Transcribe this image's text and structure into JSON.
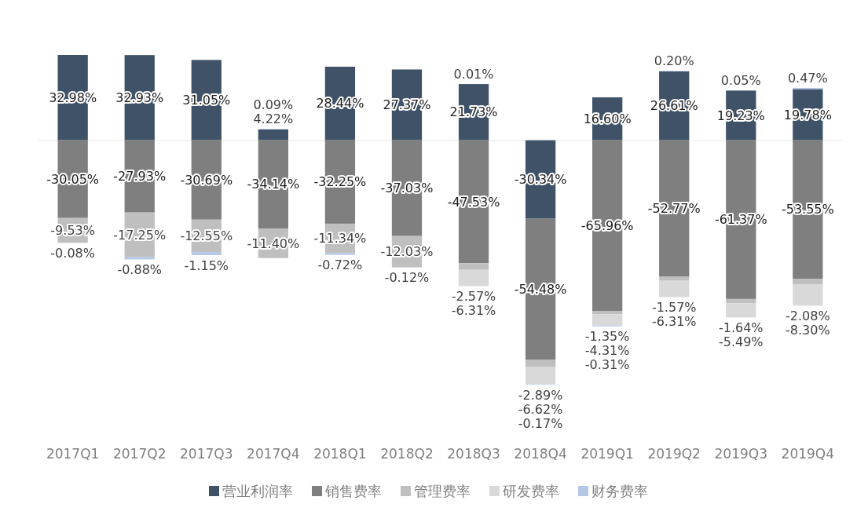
{
  "chart_data": {
    "type": "bar",
    "stacked": true,
    "categories": [
      "2017Q1",
      "2017Q2",
      "2017Q3",
      "2017Q4",
      "2018Q1",
      "2018Q2",
      "2018Q3",
      "2018Q4",
      "2019Q1",
      "2019Q2",
      "2019Q3",
      "2019Q4"
    ],
    "series": [
      {
        "name": "营业利润率",
        "color": "#3f5268",
        "values": [
          32.98,
          32.93,
          31.05,
          4.22,
          28.44,
          27.37,
          21.73,
          -30.34,
          16.6,
          26.61,
          19.23,
          19.78
        ],
        "value_labels": [
          "32.98%",
          "32.93%",
          "31.05%",
          "4.22%",
          "28.44%",
          "27.37%",
          "21.73%",
          "-30.34%",
          "16.60%",
          "26.61%",
          "19.23%",
          "19.78%"
        ]
      },
      {
        "name": "销售费率",
        "color": "#7f7f7f",
        "values": [
          -30.05,
          -27.93,
          -30.69,
          -34.14,
          -32.25,
          -37.03,
          -47.53,
          -54.48,
          -65.96,
          -52.77,
          -61.37,
          -53.55
        ],
        "value_labels": [
          "-30.05%",
          "-27.93%",
          "-30.69%",
          "-34.14%",
          "-32.25%",
          "-37.03%",
          "-47.53%",
          "-54.48%",
          "-65.96%",
          "-52.77%",
          "-61.37%",
          "-53.55%"
        ]
      },
      {
        "name": "管理费率",
        "color": "#bfbfbf",
        "values": [
          -9.53,
          -17.25,
          -12.55,
          -11.4,
          -11.34,
          -12.03,
          -2.57,
          -2.89,
          -1.35,
          -1.57,
          -1.64,
          -2.08
        ],
        "value_labels": [
          "-9.53%",
          "-17.25%",
          "-12.55%",
          "-11.40%",
          "-11.34%",
          "-12.03%",
          "-2.57%",
          "-2.89%",
          "-1.35%",
          "-1.57%",
          "-1.64%",
          "-2.08%"
        ]
      },
      {
        "name": "研发费率",
        "color": "#d9d9d9",
        "values": [
          null,
          null,
          null,
          null,
          null,
          null,
          -6.31,
          -6.62,
          -4.31,
          -6.31,
          -5.49,
          -8.3
        ],
        "value_labels": [
          null,
          null,
          null,
          null,
          null,
          null,
          "-6.31%",
          "-6.62%",
          "-4.31%",
          "-6.31%",
          "-5.49%",
          "-8.30%"
        ]
      },
      {
        "name": "财务费率",
        "color": "#b4c7e7",
        "values": [
          -0.08,
          -0.88,
          -1.15,
          0.09,
          -0.72,
          -0.12,
          0.01,
          -0.17,
          -0.31,
          0.2,
          0.05,
          0.47
        ],
        "value_labels": [
          "-0.08%",
          "-0.88%",
          "-1.15%",
          "0.09%",
          "-0.72%",
          "-0.12%",
          "0.01%",
          "-0.17%",
          "-0.31%",
          "0.20%",
          "0.05%",
          "0.47%"
        ]
      }
    ],
    "tick_labels": "x",
    "legend": "bottom"
  }
}
